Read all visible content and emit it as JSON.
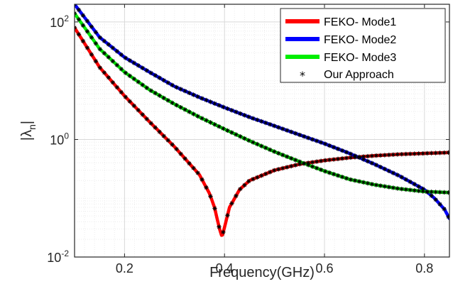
{
  "chart_data": {
    "type": "line",
    "title": "",
    "xlabel": "Frequency(GHz)",
    "ylabel_main": "|λ",
    "ylabel_sub": "n",
    "ylabel_end": "|",
    "xlim": [
      0.1,
      0.85
    ],
    "ylim": [
      0.01,
      200
    ],
    "yscale": "log",
    "grid": true,
    "legend_position": "top-right",
    "x_ticks": [
      {
        "value": 0.2,
        "label": "0.2"
      },
      {
        "value": 0.4,
        "label": "0.4"
      },
      {
        "value": 0.6,
        "label": "0.6"
      },
      {
        "value": 0.8,
        "label": "0.8"
      }
    ],
    "y_ticks": [
      {
        "value": 100,
        "base": "10",
        "exp": "2"
      },
      {
        "value": 1,
        "base": "10",
        "exp": "0"
      },
      {
        "value": 0.01,
        "base": "10",
        "exp": "-2"
      }
    ],
    "series": [
      {
        "name": "FEKO- Mode1",
        "color": "#ff0000",
        "x": [
          0.1,
          0.15,
          0.2,
          0.25,
          0.3,
          0.35,
          0.37,
          0.38,
          0.39,
          0.395,
          0.4,
          0.41,
          0.43,
          0.45,
          0.5,
          0.55,
          0.6,
          0.65,
          0.7,
          0.75,
          0.8,
          0.85
        ],
        "y": [
          80,
          17,
          5.5,
          2.0,
          0.75,
          0.25,
          0.12,
          0.07,
          0.03,
          0.022,
          0.032,
          0.07,
          0.14,
          0.2,
          0.3,
          0.38,
          0.44,
          0.49,
          0.53,
          0.56,
          0.58,
          0.6
        ]
      },
      {
        "name": "FEKO- Mode2",
        "color": "#0000ff",
        "x": [
          0.1,
          0.15,
          0.2,
          0.25,
          0.3,
          0.35,
          0.4,
          0.45,
          0.5,
          0.55,
          0.6,
          0.65,
          0.7,
          0.75,
          0.8,
          0.82,
          0.84,
          0.85
        ],
        "y": [
          200,
          55,
          25,
          14,
          8,
          5.2,
          3.5,
          2.4,
          1.7,
          1.2,
          0.85,
          0.58,
          0.38,
          0.24,
          0.14,
          0.1,
          0.065,
          0.045
        ]
      },
      {
        "name": "FEKO- Mode3",
        "color": "#00ee00",
        "x": [
          0.1,
          0.15,
          0.2,
          0.25,
          0.3,
          0.35,
          0.4,
          0.45,
          0.5,
          0.55,
          0.6,
          0.65,
          0.7,
          0.75,
          0.8,
          0.85
        ],
        "y": [
          140,
          35,
          14,
          7,
          4,
          2.4,
          1.5,
          0.95,
          0.62,
          0.42,
          0.29,
          0.21,
          0.17,
          0.145,
          0.13,
          0.125
        ]
      }
    ],
    "markers": {
      "name": "Our Approach",
      "symbol": "*",
      "color": "#000000"
    }
  }
}
